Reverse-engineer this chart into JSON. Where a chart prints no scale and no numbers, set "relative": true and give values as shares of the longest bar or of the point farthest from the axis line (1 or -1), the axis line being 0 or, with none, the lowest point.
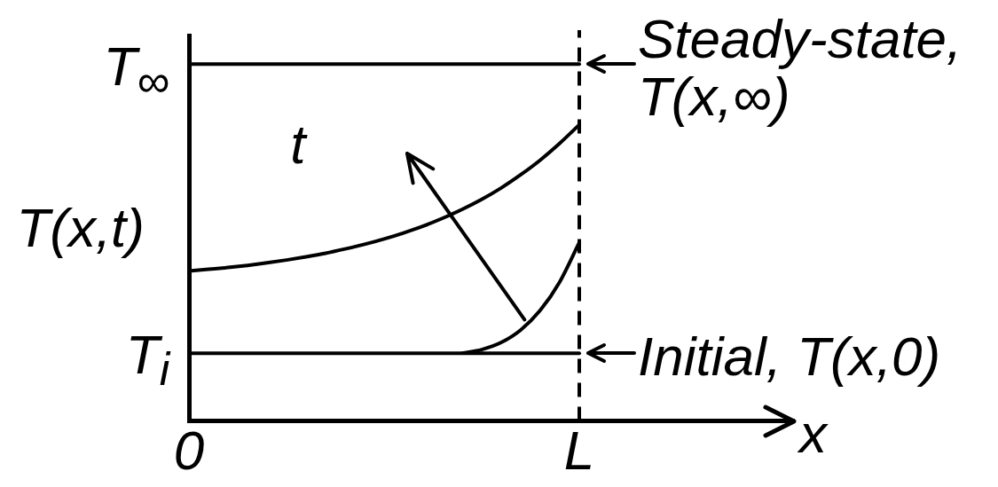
{
  "chart_data": {
    "type": "line",
    "relative": true,
    "xlabel": "x",
    "ylabel": "T(x,t)",
    "categories": [
      "0",
      null,
      null,
      null,
      null,
      null,
      null,
      null,
      null,
      null,
      null,
      null,
      null,
      null,
      null,
      null,
      null,
      null,
      null,
      null,
      "L",
      null,
      null,
      null,
      null,
      null,
      null,
      null,
      null,
      null,
      null,
      null
    ],
    "series": [
      {
        "name": "Steady-state, T(x,∞)",
        "color": "#000000",
        "values": [
          1,
          1,
          1,
          1,
          1,
          1,
          1,
          1,
          1,
          1,
          1,
          1,
          1,
          1,
          1,
          1,
          1,
          1,
          1,
          1,
          1,
          null,
          null,
          null,
          null,
          null,
          null,
          null,
          null,
          null,
          null,
          null
        ]
      },
      {
        "name": "Initial, T(x,0)",
        "color": "#000000",
        "values": [
          0.19,
          0.19,
          0.19,
          0.19,
          0.19,
          0.19,
          0.19,
          0.19,
          0.19,
          0.19,
          0.19,
          0.19,
          0.19,
          0.19,
          0.19,
          0.19,
          0.19,
          0.19,
          0.19,
          0.19,
          0.19,
          null,
          null,
          null,
          null,
          null,
          null,
          null,
          null,
          null,
          null,
          null
        ]
      },
      {
        "color": "#000000",
        "values": [
          0.42,
          0.425,
          0.43,
          0.436,
          0.443,
          0.451,
          0.46,
          0.47,
          0.482,
          0.495,
          0.51,
          0.527,
          0.546,
          0.568,
          0.593,
          0.621,
          0.653,
          0.69,
          0.731,
          0.778,
          0.83,
          null,
          null,
          null,
          null,
          null,
          null,
          null,
          null,
          null,
          null,
          null
        ]
      },
      {
        "color": "#000000",
        "values": [
          null,
          null,
          null,
          null,
          null,
          null,
          null,
          null,
          null,
          null,
          null,
          null,
          null,
          null,
          0.19,
          0.2,
          0.22,
          0.255,
          0.31,
          0.39,
          0.5,
          null,
          null,
          null,
          null,
          null,
          null,
          null,
          null,
          null,
          null,
          null
        ]
      }
    ],
    "ref_lines": [
      {
        "axis": "x",
        "value": "L",
        "line_style": "dashed",
        "color": "#000000"
      }
    ],
    "annotations": [
      "T$_{∞}$",
      "T$_{i}$",
      "t"
    ],
    "legend": "right",
    "marker": "none",
    "line_style": "solid"
  }
}
